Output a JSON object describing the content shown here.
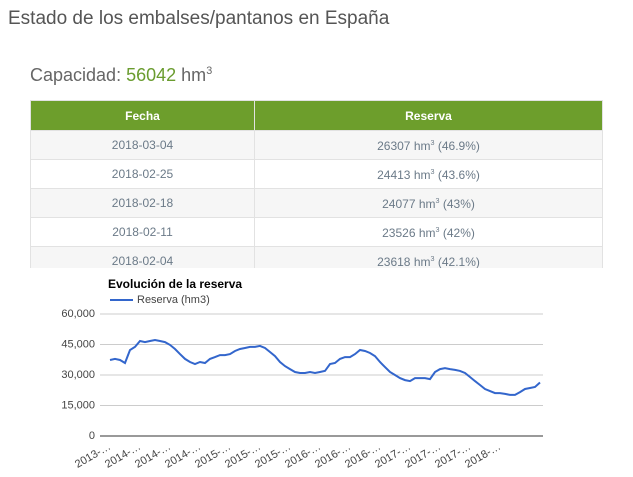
{
  "header": {
    "title": "Estado de los embalses/pantanos en España"
  },
  "capacity": {
    "label": "Capacidad:",
    "value": "56042",
    "unit": "hm",
    "exp": "3"
  },
  "table": {
    "columns": [
      "Fecha",
      "Reserva"
    ],
    "rows": [
      [
        "2018-03-04",
        {
          "amount": "26307",
          "unit": "hm",
          "exp": "3",
          "share": "(46.9%)"
        }
      ],
      [
        "2018-02-25",
        {
          "amount": "24413",
          "unit": "hm",
          "exp": "3",
          "share": "(43.6%)"
        }
      ],
      [
        "2018-02-18",
        {
          "amount": "24077",
          "unit": "hm",
          "exp": "3",
          "share": "(43%)"
        }
      ],
      [
        "2018-02-11",
        {
          "amount": "23526",
          "unit": "hm",
          "exp": "3",
          "share": "(42%)"
        }
      ],
      [
        "2018-02-04",
        {
          "amount": "23618",
          "unit": "hm",
          "exp": "3",
          "share": "(42.1%)"
        }
      ]
    ]
  },
  "chart_data": {
    "type": "line",
    "title": "Evolución de la reserva",
    "categories": [
      "2013-…",
      null,
      null,
      null,
      null,
      null,
      "2014-…",
      null,
      null,
      null,
      null,
      null,
      "2014-…",
      null,
      null,
      null,
      null,
      null,
      "2014-…",
      null,
      null,
      null,
      null,
      null,
      "2015-…",
      null,
      null,
      null,
      null,
      null,
      "2015-…",
      null,
      null,
      null,
      null,
      null,
      "2015-…",
      null,
      null,
      null,
      null,
      null,
      "2016-…",
      null,
      null,
      null,
      null,
      null,
      "2016-…",
      null,
      null,
      null,
      null,
      null,
      "2016-…",
      null,
      null,
      null,
      null,
      null,
      "2017-…",
      null,
      null,
      null,
      null,
      null,
      "2017-…",
      null,
      null,
      null,
      null,
      null,
      "2017-…",
      null,
      null,
      null,
      null,
      null,
      "2018-…",
      null,
      null,
      null,
      null,
      null,
      null,
      null,
      null
    ],
    "series": [
      {
        "name": "Reserva (hm3)",
        "color": "#3366cc",
        "values": [
          37400,
          37900,
          37400,
          35900,
          42300,
          43800,
          46700,
          46200,
          46700,
          47200,
          46700,
          46200,
          44800,
          42800,
          40300,
          37900,
          36400,
          35400,
          36400,
          35900,
          37900,
          38800,
          39800,
          39800,
          40300,
          41800,
          42800,
          43300,
          43800,
          43800,
          44300,
          43300,
          41300,
          39300,
          36400,
          34400,
          32900,
          31500,
          31000,
          31000,
          31500,
          31000,
          31500,
          32000,
          35400,
          35900,
          37900,
          38800,
          38800,
          40300,
          42300,
          41800,
          40800,
          39300,
          36400,
          33900,
          31500,
          30000,
          28500,
          27500,
          27000,
          28500,
          28500,
          28500,
          28000,
          31500,
          32900,
          33400,
          32900,
          32500,
          32000,
          31000,
          29000,
          27000,
          25100,
          23100,
          22100,
          21100,
          21100,
          20700,
          20200,
          20200,
          21600,
          23100,
          23600,
          24100,
          26300
        ]
      }
    ],
    "ylim": [
      0,
      60000
    ],
    "yticks": [
      0,
      {
        "value": 15000,
        "label": "15,000"
      },
      {
        "value": 30000,
        "label": "30,000"
      },
      {
        "value": 45000,
        "label": "45,000"
      },
      {
        "value": 60000,
        "label": "60,000"
      }
    ],
    "grid": true,
    "legend": "top"
  }
}
